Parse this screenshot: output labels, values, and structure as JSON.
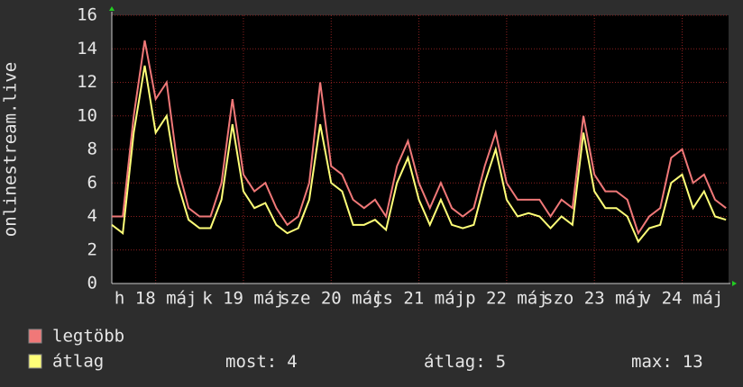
{
  "chart_data": {
    "type": "line",
    "y_label": "onlinestream.live",
    "x": [
      0,
      3,
      6,
      9,
      12,
      15,
      18,
      21,
      24,
      27,
      30,
      33,
      36,
      39,
      42,
      45,
      48,
      51,
      54,
      57,
      60,
      63,
      66,
      69,
      72,
      75,
      78,
      81,
      84,
      87,
      90,
      93,
      96,
      99,
      102,
      105,
      108,
      111,
      114,
      117,
      120,
      123,
      126,
      129,
      132,
      135,
      138,
      141,
      144,
      147,
      150,
      153,
      156,
      159,
      162,
      165,
      168
    ],
    "xlim": [
      0,
      168.7
    ],
    "xticks": [
      {
        "value": 12,
        "label": "h 18 máj"
      },
      {
        "value": 36,
        "label": "k 19 máj"
      },
      {
        "value": 60,
        "label": "sze 20 máj"
      },
      {
        "value": 84,
        "label": "cs 21 máj"
      },
      {
        "value": 108,
        "label": "p 22 máj"
      },
      {
        "value": 132,
        "label": "szo 23 máj"
      },
      {
        "value": 156,
        "label": "v 24 máj"
      }
    ],
    "ylim": [
      0,
      16
    ],
    "yticks": [
      0,
      2,
      4,
      6,
      8,
      10,
      12,
      14,
      16
    ],
    "grid": true,
    "series": [
      {
        "name": "legtöbb",
        "color": "#f07878",
        "values": [
          4,
          4,
          10,
          14.5,
          11,
          12,
          7,
          4.5,
          4,
          4,
          6,
          11,
          6.5,
          5.5,
          6,
          4.5,
          3.5,
          4,
          6,
          12,
          7,
          6.5,
          5,
          4.5,
          5,
          4,
          7,
          8.5,
          6,
          4.5,
          6,
          4.5,
          4,
          4.5,
          7,
          9,
          6,
          5,
          5,
          5,
          4,
          5,
          4.5,
          10,
          6.5,
          5.5,
          5.5,
          5,
          3,
          4,
          4.5,
          7.5,
          8,
          6,
          6.5,
          5,
          4.5
        ]
      },
      {
        "name": "átlag",
        "color": "#ffff78",
        "values": [
          3.5,
          3,
          9,
          13,
          9,
          10,
          6,
          3.8,
          3.3,
          3.3,
          5,
          9.5,
          5.5,
          4.5,
          4.8,
          3.5,
          3,
          3.3,
          5,
          9.5,
          6,
          5.5,
          3.5,
          3.5,
          3.8,
          3.2,
          6,
          7.5,
          5,
          3.5,
          5,
          3.5,
          3.3,
          3.5,
          6,
          8,
          5,
          4,
          4.2,
          4,
          3.3,
          4,
          3.5,
          9,
          5.5,
          4.5,
          4.5,
          4,
          2.5,
          3.3,
          3.5,
          6,
          6.5,
          4.5,
          5.5,
          4,
          3.8
        ]
      }
    ],
    "stats": [
      {
        "label": "most:",
        "value": 4
      },
      {
        "label": "átlag:",
        "value": 5
      },
      {
        "label": "max:",
        "value": 13
      }
    ]
  }
}
